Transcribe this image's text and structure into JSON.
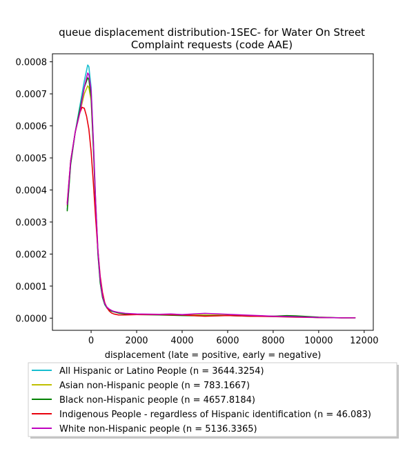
{
  "chart_data": {
    "type": "line",
    "title_lines": [
      "queue displacement distribution-1SEC-  for Water On Street",
      "Complaint  requests (code AAE)"
    ],
    "xlabel": "displacement (late = positive, early = negative)",
    "ylabel": "",
    "xlim": [
      -1700,
      12400
    ],
    "ylim": [
      -3.8e-05,
      0.000825
    ],
    "x_ticks": [
      0,
      2000,
      4000,
      6000,
      8000,
      10000,
      12000
    ],
    "x_tick_labels": [
      "0",
      "2000",
      "4000",
      "6000",
      "8000",
      "10000",
      "12000"
    ],
    "y_ticks": [
      0.0,
      0.0001,
      0.0002,
      0.0003,
      0.0004,
      0.0005,
      0.0006,
      0.0007,
      0.0008
    ],
    "y_tick_labels": [
      "0.0000",
      "0.0001",
      "0.0002",
      "0.0003",
      "0.0004",
      "0.0005",
      "0.0006",
      "0.0007",
      "0.0008"
    ],
    "grid": false,
    "legend_position": "below",
    "series": [
      {
        "name": "All Hispanic or Latino People (n = 3644.3254)",
        "color": "#17becf",
        "x": [
          -1050,
          -900,
          -700,
          -500,
          -300,
          -150,
          -100,
          0,
          100,
          200,
          300,
          400,
          500,
          600,
          700,
          800,
          900,
          1000,
          1200,
          1500,
          2000,
          3000,
          4000,
          5000,
          6000,
          7000,
          8000,
          9000,
          10000,
          11000,
          11600
        ],
        "y": [
          0.00034,
          0.00048,
          0.00058,
          0.00066,
          0.00074,
          0.00079,
          0.000785,
          0.00072,
          0.00055,
          0.00036,
          0.0002,
          0.00011,
          6.5e-05,
          4.2e-05,
          3.1e-05,
          2.6e-05,
          2.2e-05,
          2e-05,
          1.7e-05,
          1.4e-05,
          1.2e-05,
          1.1e-05,
          1e-05,
          1e-05,
          9e-06,
          7e-06,
          5e-06,
          4e-06,
          2e-06,
          1e-06,
          1e-06
        ]
      },
      {
        "name": "Asian non-Hispanic people (n = 783.1667)",
        "color": "#bfbf00",
        "x": [
          -1050,
          -900,
          -700,
          -500,
          -300,
          -150,
          -100,
          0,
          100,
          200,
          300,
          400,
          500,
          600,
          700,
          800,
          900,
          1000,
          1200,
          1500,
          2000,
          3000,
          4000,
          5000,
          6000,
          7000,
          8000,
          9000,
          10000,
          11000,
          11600
        ],
        "y": [
          0.00035,
          0.00049,
          0.00058,
          0.00064,
          0.0007,
          0.000725,
          0.00072,
          0.00068,
          0.00053,
          0.00036,
          0.00021,
          0.00012,
          7e-05,
          4.5e-05,
          3.3e-05,
          2.7e-05,
          2.3e-05,
          2e-05,
          1.7e-05,
          1.4e-05,
          1.2e-05,
          1.1e-05,
          1e-05,
          1e-05,
          9e-06,
          8e-06,
          6e-06,
          4e-06,
          2e-06,
          1e-06,
          1e-06
        ]
      },
      {
        "name": "Black non-Hispanic people (n = 4657.8184)",
        "color": "#008000",
        "x": [
          -1050,
          -900,
          -700,
          -500,
          -300,
          -150,
          -100,
          0,
          100,
          200,
          300,
          400,
          500,
          600,
          700,
          800,
          900,
          1000,
          1200,
          1500,
          2000,
          3000,
          4000,
          5000,
          6000,
          7000,
          8000,
          8600,
          9000,
          10000,
          11000,
          11600
        ],
        "y": [
          0.000335,
          0.00048,
          0.00058,
          0.00065,
          0.00072,
          0.00075,
          0.000745,
          0.00069,
          0.00053,
          0.00035,
          0.0002,
          0.00011,
          6.5e-05,
          4.3e-05,
          3.2e-05,
          2.6e-05,
          2.2e-05,
          2e-05,
          1.6e-05,
          1.3e-05,
          1.1e-05,
          1e-05,
          8e-06,
          7e-06,
          8e-06,
          6e-06,
          6e-06,
          8e-06,
          7e-06,
          3e-06,
          1e-06,
          1e-06
        ]
      },
      {
        "name": "Indigenous People - regardless of Hispanic identification (n = 46.083)",
        "color": "#e8000b",
        "x": [
          -1050,
          -900,
          -700,
          -500,
          -400,
          -300,
          -200,
          -100,
          0,
          100,
          200,
          300,
          400,
          500,
          600,
          700,
          800,
          900,
          1000,
          1200,
          1500,
          2000,
          3000,
          4000,
          5000,
          6000,
          7000,
          8000,
          9000,
          10000,
          11000,
          11600
        ],
        "y": [
          0.00036,
          0.00049,
          0.00058,
          0.00064,
          0.000658,
          0.000655,
          0.00063,
          0.00059,
          0.00052,
          0.00042,
          0.00031,
          0.00021,
          0.00013,
          8e-05,
          4.8e-05,
          3.2e-05,
          2.2e-05,
          1.6e-05,
          1.3e-05,
          1e-05,
          1e-05,
          1.1e-05,
          1.1e-05,
          1e-05,
          6e-06,
          8e-06,
          6e-06,
          5e-06,
          3e-06,
          2e-06,
          1e-06,
          1e-06
        ]
      },
      {
        "name": "White non-Hispanic people (n = 5136.3365)",
        "color": "#bf00bf",
        "x": [
          -1050,
          -900,
          -700,
          -500,
          -300,
          -150,
          -100,
          0,
          100,
          200,
          300,
          400,
          500,
          600,
          700,
          800,
          900,
          1000,
          1200,
          1500,
          2000,
          3000,
          3500,
          4000,
          5000,
          6000,
          7000,
          8000,
          9000,
          10000,
          11000,
          11600
        ],
        "y": [
          0.000355,
          0.00049,
          0.00058,
          0.00064,
          0.00072,
          0.000765,
          0.00076,
          0.00071,
          0.00055,
          0.00036,
          0.00021,
          0.00012,
          7e-05,
          4.5e-05,
          3.4e-05,
          2.8e-05,
          2.4e-05,
          2.1e-05,
          1.8e-05,
          1.5e-05,
          1.3e-05,
          1.2e-05,
          1.3e-05,
          1.1e-05,
          1.5e-05,
          1.2e-05,
          9e-06,
          6e-06,
          4e-06,
          2e-06,
          1e-06,
          1e-06
        ]
      }
    ]
  }
}
